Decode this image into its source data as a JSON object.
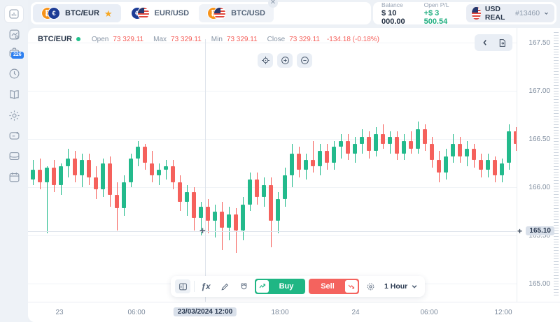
{
  "topbar": {
    "tabs": [
      {
        "label": "BTC/EUR",
        "active": true,
        "starred": true
      },
      {
        "label": "EUR/USD",
        "active": false,
        "starred": false
      },
      {
        "label": "BTC/USD",
        "active": false,
        "closable": true
      }
    ],
    "balance_label": "Balance",
    "balance_value": "$ 10 000.00",
    "pnl_label": "Open P/L",
    "pnl_value": "+$ 3 500.54",
    "account": {
      "name": "USD REAL",
      "id": "#13460"
    }
  },
  "sidebar": {
    "items": [
      "trade-room",
      "chart-settings",
      "portfolio",
      "history",
      "education",
      "settings",
      "chat",
      "wallet",
      "calendar"
    ],
    "portfolio_badge": "226"
  },
  "chart_header": {
    "symbol": "BTC/EUR",
    "open_label": "Open",
    "open": "73 329.11",
    "max_label": "Max",
    "max": "73 329.11",
    "min_label": "Min",
    "min": "73 329.11",
    "close_label": "Close",
    "close": "73 329.11",
    "change": "-134.18 (-0.18%)"
  },
  "toolbar": {
    "buy_label": "Buy",
    "sell_label": "Sell",
    "timeframe": "1 Hour"
  },
  "colors": {
    "green": "#23BA8C",
    "red": "#F5615C",
    "buy": "#1FB684",
    "sell": "#F4635E",
    "badge_blue": "#2D7FF0",
    "star": "#F6A723",
    "pnl_green": "#1FAE7F"
  },
  "chart_data": {
    "type": "candlestick",
    "symbol": "BTC/EUR",
    "timeframe": "1 Hour",
    "y_axis": {
      "ticks": [
        167.5,
        167.0,
        166.5,
        166.0,
        165.5,
        165.0
      ],
      "grid": true
    },
    "x_axis": {
      "ticks": [
        "23",
        "06:00",
        "18:00",
        "24",
        "06:00",
        "12:00"
      ]
    },
    "crosshair": {
      "price": "165.10",
      "time": "23/03/2024 12:00"
    },
    "candles": [
      [
        166.08,
        166.28,
        166.02,
        166.18
      ],
      [
        166.18,
        166.3,
        165.98,
        166.05
      ],
      [
        166.05,
        166.22,
        165.52,
        166.2
      ],
      [
        166.2,
        166.28,
        165.95,
        166.02
      ],
      [
        166.02,
        166.25,
        165.92,
        166.22
      ],
      [
        166.22,
        166.4,
        166.1,
        166.3
      ],
      [
        166.3,
        166.38,
        166.05,
        166.12
      ],
      [
        166.12,
        166.35,
        166.0,
        166.28
      ],
      [
        166.28,
        166.35,
        166.02,
        166.1
      ],
      [
        166.1,
        166.22,
        165.88,
        165.98
      ],
      [
        165.98,
        166.3,
        165.9,
        166.25
      ],
      [
        166.25,
        166.32,
        165.8,
        165.92
      ],
      [
        165.92,
        166.05,
        165.55,
        165.78
      ],
      [
        165.78,
        166.12,
        165.7,
        166.05
      ],
      [
        166.05,
        166.35,
        166.0,
        166.3
      ],
      [
        166.3,
        166.48,
        166.22,
        166.42
      ],
      [
        166.42,
        166.45,
        166.18,
        166.25
      ],
      [
        166.25,
        166.38,
        166.05,
        166.12
      ],
      [
        166.12,
        166.25,
        166.02,
        166.18
      ],
      [
        166.18,
        166.28,
        166.08,
        166.22
      ],
      [
        166.22,
        166.28,
        165.98,
        166.05
      ],
      [
        166.05,
        166.12,
        165.75,
        165.85
      ],
      [
        165.85,
        166.02,
        165.7,
        165.95
      ],
      [
        165.95,
        166.0,
        165.55,
        165.68
      ],
      [
        165.68,
        165.85,
        165.5,
        165.8
      ],
      [
        165.8,
        165.88,
        165.52,
        165.65
      ],
      [
        165.65,
        165.82,
        165.48,
        165.75
      ],
      [
        165.75,
        165.85,
        165.35,
        165.58
      ],
      [
        165.58,
        165.8,
        165.45,
        165.72
      ],
      [
        165.72,
        165.78,
        165.32,
        165.55
      ],
      [
        165.55,
        165.9,
        165.45,
        165.82
      ],
      [
        165.82,
        166.15,
        165.75,
        166.08
      ],
      [
        166.08,
        166.15,
        165.82,
        165.9
      ],
      [
        165.9,
        166.1,
        165.8,
        166.02
      ],
      [
        166.02,
        166.1,
        165.38,
        165.65
      ],
      [
        165.65,
        165.95,
        165.52,
        165.88
      ],
      [
        165.88,
        166.2,
        165.8,
        166.12
      ],
      [
        166.12,
        166.45,
        166.0,
        166.35
      ],
      [
        166.35,
        166.42,
        166.1,
        166.18
      ],
      [
        166.18,
        166.35,
        166.08,
        166.28
      ],
      [
        166.28,
        166.48,
        166.15,
        166.22
      ],
      [
        166.22,
        166.45,
        166.12,
        166.38
      ],
      [
        166.38,
        166.45,
        166.18,
        166.25
      ],
      [
        166.25,
        166.48,
        166.18,
        166.42
      ],
      [
        166.42,
        166.55,
        166.3,
        166.48
      ],
      [
        166.48,
        166.55,
        166.28,
        166.35
      ],
      [
        166.35,
        166.52,
        166.25,
        166.45
      ],
      [
        166.45,
        166.6,
        166.35,
        166.52
      ],
      [
        166.52,
        166.58,
        166.3,
        166.38
      ],
      [
        166.38,
        166.62,
        166.32,
        166.55
      ],
      [
        166.55,
        166.65,
        166.4,
        166.45
      ],
      [
        166.45,
        166.58,
        166.35,
        166.52
      ],
      [
        166.52,
        166.58,
        166.28,
        166.35
      ],
      [
        166.35,
        166.55,
        166.28,
        166.48
      ],
      [
        166.48,
        166.58,
        166.35,
        166.4
      ],
      [
        166.4,
        166.68,
        166.35,
        166.6
      ],
      [
        166.6,
        166.65,
        166.38,
        166.45
      ],
      [
        166.45,
        166.52,
        166.2,
        166.28
      ],
      [
        166.28,
        166.38,
        166.05,
        166.15
      ],
      [
        166.15,
        166.4,
        166.08,
        166.32
      ],
      [
        166.32,
        166.55,
        166.25,
        166.45
      ],
      [
        166.45,
        166.52,
        166.25,
        166.32
      ],
      [
        166.32,
        166.48,
        166.22,
        166.4
      ],
      [
        166.4,
        166.45,
        166.2,
        166.28
      ],
      [
        166.28,
        166.35,
        166.1,
        166.18
      ],
      [
        166.18,
        166.35,
        166.1,
        166.28
      ],
      [
        166.28,
        166.32,
        166.05,
        166.12
      ],
      [
        166.12,
        166.3,
        166.05,
        166.25
      ],
      [
        166.25,
        166.65,
        166.18,
        166.58
      ],
      [
        166.58,
        166.62,
        166.38,
        166.45
      ]
    ]
  }
}
